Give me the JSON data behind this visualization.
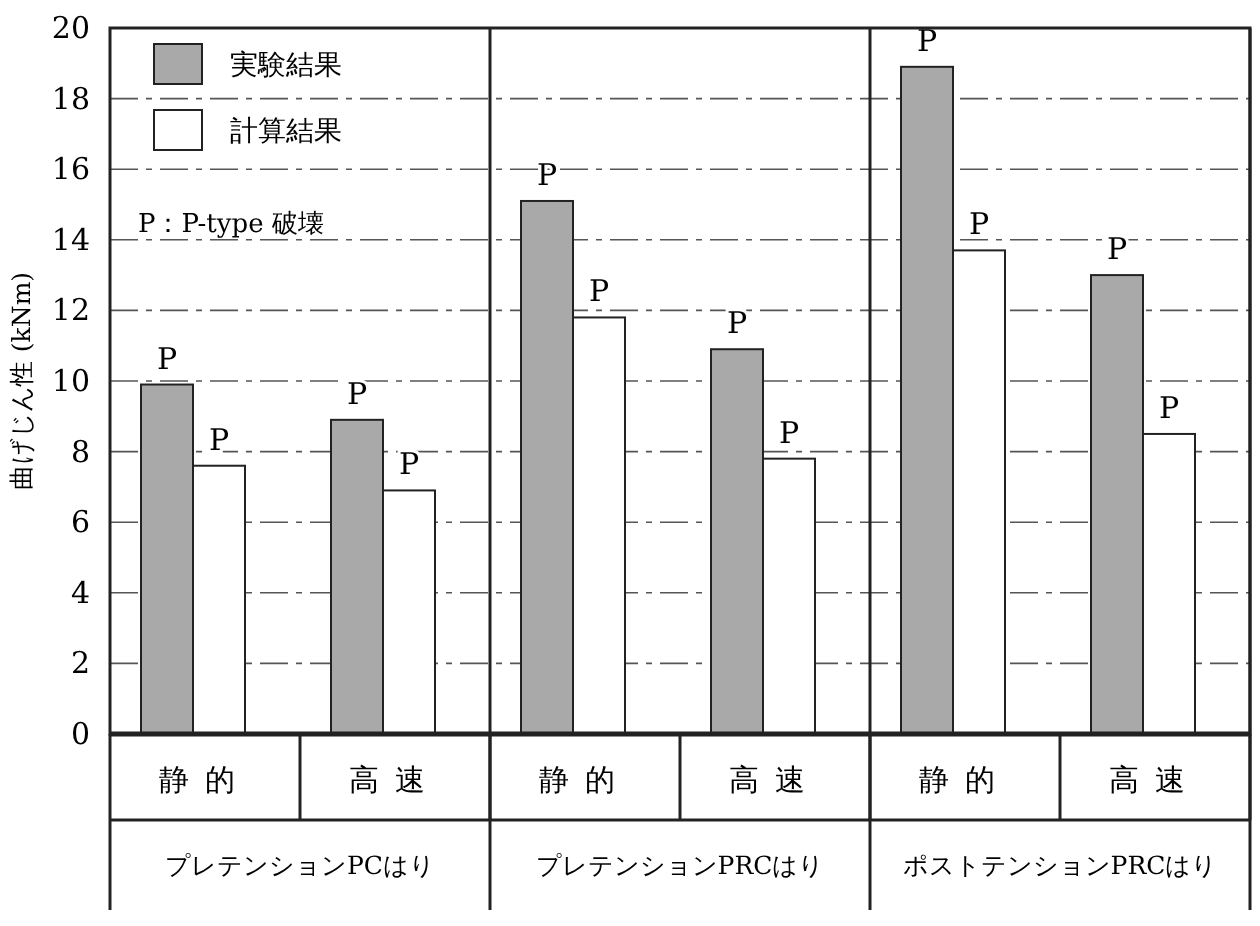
{
  "chart_data": {
    "type": "bar",
    "ylabel": "曲げじん性 (kNm)",
    "categories": [
      "静的",
      "高速",
      "静的",
      "高速",
      "静的",
      "高速"
    ],
    "series": [
      {
        "name": "実験結果",
        "color": "#a9a9a9",
        "values": [
          9.9,
          8.9,
          15.1,
          10.9,
          18.9,
          13.0
        ],
        "value_labels": [
          "P",
          "P",
          "P",
          "P",
          "P",
          "P"
        ]
      },
      {
        "name": "計算結果",
        "color": "#ffffff",
        "values": [
          7.6,
          6.9,
          11.8,
          7.8,
          13.7,
          8.5
        ],
        "value_labels": [
          "P",
          "P",
          "P",
          "P",
          "P",
          "P"
        ]
      }
    ],
    "annotations": [
      "P：P-type 破壊",
      "プレテンションPCはり",
      "プレテンションPRCはり",
      "ポストテンションPRCはり"
    ],
    "ylim": [
      0,
      20
    ],
    "yticks": [
      0,
      2,
      4,
      6,
      8,
      10,
      12,
      14,
      16,
      18,
      20
    ],
    "grid": "y",
    "legend": "top left"
  }
}
